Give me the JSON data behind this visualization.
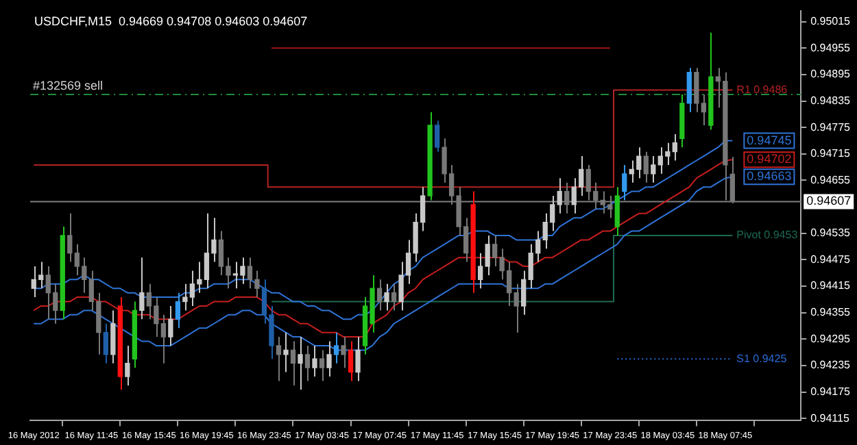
{
  "chart_data": {
    "type": "candlestick",
    "title": "USDCHF,M15  0.94669 0.94708 0.94603 0.94607",
    "categories": [
      "16 May 2012",
      null,
      null,
      null,
      null,
      null,
      null,
      null,
      "16 May 11:45",
      null,
      null,
      null,
      null,
      null,
      null,
      null,
      "16 May 15:45",
      null,
      null,
      null,
      null,
      null,
      null,
      null,
      "16 May 19:45",
      null,
      null,
      null,
      null,
      null,
      null,
      null,
      "16 May 23:45",
      null,
      null,
      null,
      null,
      null,
      null,
      null,
      "17 May 03:45",
      null,
      null,
      null,
      null,
      null,
      null,
      null,
      "17 May 07:45",
      null,
      null,
      null,
      null,
      null,
      null,
      null,
      "17 May 11:45",
      null,
      null,
      null,
      null,
      null,
      null,
      null,
      "17 May 15:45",
      null,
      null,
      null,
      null,
      null,
      null,
      null,
      "17 May 19:45",
      null,
      null,
      null,
      null,
      null,
      null,
      null,
      "17 May 23:45",
      null,
      null,
      null,
      null,
      null,
      null,
      null,
      "18 May 03:45",
      null,
      null,
      null,
      null,
      null,
      null,
      null,
      "18 May 07:45",
      null,
      null,
      null,
      null,
      null,
      null,
      null,
      null,
      null,
      null
    ],
    "ohlc": [
      [
        0.9441,
        0.9446,
        0.9439,
        0.9443
      ],
      [
        0.9443,
        0.9447,
        0.9441,
        0.9444
      ],
      [
        0.9444,
        0.9446,
        0.9434,
        0.944
      ],
      [
        0.944,
        0.9442,
        0.9433,
        0.9436
      ],
      [
        0.9436,
        0.9455,
        0.9434,
        0.9453
      ],
      [
        0.9453,
        0.9458,
        0.9447,
        0.9449
      ],
      [
        0.9449,
        0.9451,
        0.9444,
        0.9446
      ],
      [
        0.9446,
        0.9448,
        0.944,
        0.9443
      ],
      [
        0.9443,
        0.9445,
        0.9436,
        0.9438
      ],
      [
        0.9438,
        0.944,
        0.9426,
        0.9431
      ],
      [
        0.9431,
        0.9433,
        0.9424,
        0.9426
      ],
      [
        0.9426,
        0.9436,
        0.9424,
        0.9433
      ],
      [
        0.9437,
        0.9439,
        0.9418,
        0.9421
      ],
      [
        0.9421,
        0.9428,
        0.9419,
        0.9424
      ],
      [
        0.9425,
        0.9438,
        0.9423,
        0.9436
      ],
      [
        0.9436,
        0.9448,
        0.9434,
        0.944
      ],
      [
        0.944,
        0.9442,
        0.9434,
        0.9437
      ],
      [
        0.9437,
        0.9439,
        0.943,
        0.9433
      ],
      [
        0.9433,
        0.9435,
        0.9424,
        0.943
      ],
      [
        0.943,
        0.9437,
        0.9428,
        0.9434
      ],
      [
        0.9434,
        0.944,
        0.9432,
        0.9438
      ],
      [
        0.9438,
        0.9442,
        0.9436,
        0.9439
      ],
      [
        0.9439,
        0.9445,
        0.9437,
        0.9442
      ],
      [
        0.9442,
        0.9447,
        0.944,
        0.9443
      ],
      [
        0.9443,
        0.9458,
        0.9441,
        0.9449
      ],
      [
        0.9449,
        0.9457,
        0.9447,
        0.9452
      ],
      [
        0.9452,
        0.9454,
        0.9444,
        0.9446
      ],
      [
        0.9446,
        0.9448,
        0.9441,
        0.9444
      ],
      [
        0.9444,
        0.9447,
        0.9441,
        0.9444
      ],
      [
        0.9444,
        0.9448,
        0.9442,
        0.9446
      ],
      [
        0.9446,
        0.9448,
        0.9441,
        0.9443
      ],
      [
        0.9443,
        0.9445,
        0.9439,
        0.9441
      ],
      [
        0.9441,
        0.9443,
        0.9433,
        0.9435
      ],
      [
        0.9435,
        0.9437,
        0.9425,
        0.9428
      ],
      [
        0.9428,
        0.943,
        0.942,
        0.9426
      ],
      [
        0.9426,
        0.9431,
        0.9422,
        0.9427
      ],
      [
        0.9427,
        0.9429,
        0.9419,
        0.9424
      ],
      [
        0.9424,
        0.943,
        0.9418,
        0.9426
      ],
      [
        0.9426,
        0.9428,
        0.942,
        0.9423
      ],
      [
        0.9423,
        0.9428,
        0.9421,
        0.9425
      ],
      [
        0.9425,
        0.9427,
        0.942,
        0.9423
      ],
      [
        0.9423,
        0.9429,
        0.9421,
        0.9426
      ],
      [
        0.9426,
        0.9431,
        0.9424,
        0.9428
      ],
      [
        0.9428,
        0.943,
        0.9423,
        0.9426
      ],
      [
        0.9427,
        0.9429,
        0.942,
        0.9422
      ],
      [
        0.9422,
        0.943,
        0.942,
        0.9427
      ],
      [
        0.9428,
        0.9439,
        0.9426,
        0.9437
      ],
      [
        0.9433,
        0.9444,
        0.9431,
        0.9441
      ],
      [
        0.9441,
        0.9443,
        0.9436,
        0.9438
      ],
      [
        0.9438,
        0.9442,
        0.9436,
        0.944
      ],
      [
        0.944,
        0.9442,
        0.9436,
        0.9438
      ],
      [
        0.9438,
        0.9447,
        0.9436,
        0.9444
      ],
      [
        0.9444,
        0.9452,
        0.9442,
        0.9449
      ],
      [
        0.9449,
        0.9458,
        0.9447,
        0.9456
      ],
      [
        0.9456,
        0.9464,
        0.9454,
        0.9462
      ],
      [
        0.9462,
        0.9481,
        0.9461,
        0.9478
      ],
      [
        0.9478,
        0.9479,
        0.9472,
        0.9473
      ],
      [
        0.9473,
        0.9475,
        0.9465,
        0.9467
      ],
      [
        0.9467,
        0.9469,
        0.946,
        0.9462
      ],
      [
        0.9462,
        0.9464,
        0.9453,
        0.9455
      ],
      [
        0.9455,
        0.9457,
        0.9447,
        0.9449
      ],
      [
        0.946,
        0.9463,
        0.944,
        0.9443
      ],
      [
        0.9443,
        0.9449,
        0.9441,
        0.9446
      ],
      [
        0.9446,
        0.9453,
        0.9444,
        0.9451
      ],
      [
        0.9451,
        0.9453,
        0.9446,
        0.9448
      ],
      [
        0.9448,
        0.945,
        0.9443,
        0.9445
      ],
      [
        0.9445,
        0.9447,
        0.9437,
        0.944
      ],
      [
        0.944,
        0.9442,
        0.9431,
        0.9437
      ],
      [
        0.9437,
        0.9445,
        0.9435,
        0.9443
      ],
      [
        0.9443,
        0.9451,
        0.9441,
        0.9449
      ],
      [
        0.9449,
        0.9454,
        0.9447,
        0.9452
      ],
      [
        0.9452,
        0.9458,
        0.945,
        0.9456
      ],
      [
        0.9456,
        0.9462,
        0.9454,
        0.946
      ],
      [
        0.946,
        0.9466,
        0.9458,
        0.9463
      ],
      [
        0.9463,
        0.9465,
        0.9458,
        0.946
      ],
      [
        0.946,
        0.9466,
        0.9458,
        0.9464
      ],
      [
        0.9464,
        0.9471,
        0.9462,
        0.9468
      ],
      [
        0.9468,
        0.9469,
        0.9461,
        0.9463
      ],
      [
        0.9463,
        0.9465,
        0.9459,
        0.9461
      ],
      [
        0.9461,
        0.9463,
        0.9458,
        0.946
      ],
      [
        0.946,
        0.9462,
        0.9457,
        0.9459
      ],
      [
        0.9455,
        0.9464,
        0.9453,
        0.9462
      ],
      [
        0.9463,
        0.9469,
        0.9461,
        0.9467
      ],
      [
        0.9467,
        0.947,
        0.9465,
        0.9468
      ],
      [
        0.9468,
        0.9473,
        0.9466,
        0.9471
      ],
      [
        0.9471,
        0.9472,
        0.9465,
        0.9467
      ],
      [
        0.9467,
        0.9471,
        0.9465,
        0.9469
      ],
      [
        0.9469,
        0.9473,
        0.9467,
        0.9471
      ],
      [
        0.9471,
        0.9474,
        0.9469,
        0.9472
      ],
      [
        0.9472,
        0.9476,
        0.947,
        0.9474
      ],
      [
        0.9475,
        0.9485,
        0.9473,
        0.9483
      ],
      [
        0.9483,
        0.9491,
        0.9481,
        0.949
      ],
      [
        0.949,
        0.9491,
        0.9481,
        0.9483
      ],
      [
        0.9483,
        0.9485,
        0.9478,
        0.9481
      ],
      [
        0.9478,
        0.9499,
        0.9477,
        0.9489
      ],
      [
        0.9489,
        0.9491,
        0.9482,
        0.9488
      ],
      [
        0.9488,
        0.949,
        0.9461,
        0.9469
      ],
      [
        0.94669,
        0.94708,
        0.94603,
        0.94607
      ],
      null,
      null,
      null,
      null,
      null,
      null,
      null,
      null,
      null
    ],
    "colors": [
      "#c8c8c8",
      "#c8c8c8",
      "#787878",
      "#787878",
      "#22c41e",
      "#787878",
      "#787878",
      "#787878",
      "#787878",
      "#787878",
      "#1f5fa8",
      "#c8c8c8",
      "#ff1010",
      "#c8c8c8",
      "#22c41e",
      "#c8c8c8",
      "#787878",
      "#787878",
      "#787878",
      "#c8c8c8",
      "#3399ee",
      "#c8c8c8",
      "#c8c8c8",
      "#c8c8c8",
      "#c8c8c8",
      "#c8c8c8",
      "#787878",
      "#787878",
      "#c8c8c8",
      "#c8c8c8",
      "#787878",
      "#787878",
      "#1f5fa8",
      "#1f5fa8",
      "#787878",
      "#c8c8c8",
      "#787878",
      "#c8c8c8",
      "#787878",
      "#c8c8c8",
      "#787878",
      "#c8c8c8",
      "#3399ee",
      "#787878",
      "#ff1010",
      "#c8c8c8",
      "#22c41e",
      "#22c41e",
      "#787878",
      "#c8c8c8",
      "#787878",
      "#c8c8c8",
      "#c8c8c8",
      "#c8c8c8",
      "#c8c8c8",
      "#22c41e",
      "#1f5fa8",
      "#787878",
      "#787878",
      "#787878",
      "#787878",
      "#ff1010",
      "#c8c8c8",
      "#c8c8c8",
      "#787878",
      "#787878",
      "#787878",
      "#787878",
      "#c8c8c8",
      "#c8c8c8",
      "#c8c8c8",
      "#c8c8c8",
      "#c8c8c8",
      "#c8c8c8",
      "#787878",
      "#c8c8c8",
      "#c8c8c8",
      "#787878",
      "#787878",
      "#787878",
      "#787878",
      "#22c41e",
      "#3399ee",
      "#c8c8c8",
      "#c8c8c8",
      "#787878",
      "#c8c8c8",
      "#c8c8c8",
      "#c8c8c8",
      "#c8c8c8",
      "#22c41e",
      "#3399ee",
      "#787878",
      "#787878",
      "#22c41e",
      "#787878",
      "#787878",
      "#787878",
      null,
      null,
      null,
      null,
      null,
      null,
      null,
      null,
      null
    ],
    "series": [
      {
        "type": "line",
        "color": "#2f74d8",
        "values": [
          0.9441,
          0.9441,
          0.9442,
          0.9442,
          0.9442,
          0.9443,
          0.9443,
          0.9444,
          0.9443,
          0.9443,
          0.9442,
          0.9441,
          0.9441,
          0.944,
          0.944,
          0.9439,
          0.9439,
          0.9439,
          0.9439,
          0.9439,
          0.9439,
          0.944,
          0.944,
          0.9441,
          0.9441,
          0.9442,
          0.9442,
          0.9442,
          0.9443,
          0.9443,
          0.9443,
          0.9442,
          0.9441,
          0.944,
          0.944,
          0.9439,
          0.9438,
          0.9438,
          0.9437,
          0.9437,
          0.9436,
          0.9436,
          0.9435,
          0.9434,
          0.9434,
          0.9435,
          0.9435,
          0.9436,
          0.9438,
          0.944,
          0.9442,
          0.9443,
          0.9445,
          0.9446,
          0.9448,
          0.9449,
          0.945,
          0.9451,
          0.9452,
          0.9453,
          0.9453,
          0.9454,
          0.9454,
          0.9454,
          0.9453,
          0.9453,
          0.9453,
          0.9452,
          0.9452,
          0.9452,
          0.9452,
          0.9453,
          0.9453,
          0.9455,
          0.9456,
          0.9457,
          0.9457,
          0.9458,
          0.9459,
          0.9459,
          0.946,
          0.9461,
          0.9462,
          0.9463,
          0.9463,
          0.9464,
          0.9464,
          0.9465,
          0.9466,
          0.9467,
          0.9468,
          0.9469,
          0.947,
          0.9471,
          0.9472,
          0.9473,
          0.94745,
          0.94745,
          null,
          null,
          null,
          null,
          null,
          null,
          null,
          null,
          null
        ],
        "value_labels": [
          null,
          null,
          null,
          null,
          null,
          null,
          null,
          null,
          null,
          null,
          null,
          null,
          null,
          null,
          null,
          null,
          null,
          null,
          null,
          null,
          null,
          null,
          null,
          null,
          null,
          null,
          null,
          null,
          null,
          null,
          null,
          null,
          null,
          null,
          null,
          null,
          null,
          null,
          null,
          null,
          null,
          null,
          null,
          null,
          null,
          null,
          null,
          null,
          null,
          null,
          null,
          null,
          null,
          null,
          null,
          null,
          null,
          null,
          null,
          null,
          null,
          null,
          null,
          null,
          null,
          null,
          null,
          null,
          null,
          null,
          null,
          null,
          null,
          null,
          null,
          null,
          null,
          null,
          null,
          null,
          null,
          null,
          null,
          null,
          null,
          null,
          null,
          null,
          null,
          null,
          null,
          null,
          null,
          null,
          null,
          null,
          null,
          "0.94745",
          null,
          null,
          null,
          null,
          null,
          null,
          null,
          null,
          null
        ]
      },
      {
        "type": "line",
        "color": "#c81e1e",
        "values": [
          0.9436,
          0.9437,
          0.9437,
          0.9438,
          0.9438,
          0.9438,
          0.9439,
          0.9439,
          0.9439,
          0.9438,
          0.9438,
          0.9437,
          0.9436,
          0.9436,
          0.9435,
          0.9435,
          0.9435,
          0.9434,
          0.9434,
          0.9434,
          0.9434,
          0.9435,
          0.9436,
          0.9437,
          0.9437,
          0.9438,
          0.9438,
          0.9438,
          0.9439,
          0.9439,
          0.9439,
          0.9439,
          0.9438,
          0.9436,
          0.9435,
          0.9435,
          0.9434,
          0.9433,
          0.9433,
          0.9432,
          0.9431,
          0.9431,
          0.9431,
          0.943,
          0.943,
          0.943,
          0.943,
          0.9433,
          0.9434,
          0.9435,
          0.9437,
          0.9438,
          0.944,
          0.9441,
          0.9443,
          0.9444,
          0.9445,
          0.9446,
          0.9447,
          0.9448,
          0.9448,
          0.9448,
          0.9448,
          0.9448,
          0.9448,
          0.9448,
          0.9447,
          0.9447,
          0.9446,
          0.9446,
          0.9447,
          0.9448,
          0.9448,
          0.9449,
          0.945,
          0.9451,
          0.9452,
          0.9452,
          0.9453,
          0.9454,
          0.9454,
          0.9455,
          0.9456,
          0.9457,
          0.9458,
          0.9458,
          0.9459,
          0.946,
          0.9461,
          0.9462,
          0.9463,
          0.9464,
          0.9466,
          0.9467,
          0.9468,
          0.9469,
          0.947,
          0.94702,
          null,
          null,
          null,
          null,
          null,
          null,
          null,
          null,
          null
        ],
        "value_labels": [
          null,
          null,
          null,
          null,
          null,
          null,
          null,
          null,
          null,
          null,
          null,
          null,
          null,
          null,
          null,
          null,
          null,
          null,
          null,
          null,
          null,
          null,
          null,
          null,
          null,
          null,
          null,
          null,
          null,
          null,
          null,
          null,
          null,
          null,
          null,
          null,
          null,
          null,
          null,
          null,
          null,
          null,
          null,
          null,
          null,
          null,
          null,
          null,
          null,
          null,
          null,
          null,
          null,
          null,
          null,
          null,
          null,
          null,
          null,
          null,
          null,
          null,
          null,
          null,
          null,
          null,
          null,
          null,
          null,
          null,
          null,
          null,
          null,
          null,
          null,
          null,
          null,
          null,
          null,
          null,
          null,
          null,
          null,
          null,
          null,
          null,
          null,
          null,
          null,
          null,
          null,
          null,
          null,
          null,
          null,
          null,
          null,
          "0.94702",
          null,
          null,
          null,
          null,
          null,
          null,
          null,
          null,
          null
        ]
      },
      {
        "type": "line",
        "color": "#2f74d8",
        "values": [
          0.9433,
          0.9433,
          0.9434,
          0.9434,
          0.9434,
          0.9435,
          0.9435,
          0.9436,
          0.9436,
          0.9435,
          0.9434,
          0.9433,
          0.9432,
          0.9431,
          0.943,
          0.9429,
          0.9429,
          0.9428,
          0.9428,
          0.9428,
          0.9429,
          0.943,
          0.9431,
          0.9432,
          0.9432,
          0.9433,
          0.9434,
          0.9435,
          0.9435,
          0.9436,
          0.9436,
          0.9435,
          0.9435,
          0.9433,
          0.9432,
          0.9431,
          0.943,
          0.943,
          0.9429,
          0.9428,
          0.9428,
          0.9428,
          0.9427,
          0.9427,
          0.9427,
          0.9427,
          0.9427,
          0.9428,
          0.943,
          0.9431,
          0.9433,
          0.9434,
          0.9435,
          0.9436,
          0.9437,
          0.9438,
          0.9439,
          0.944,
          0.9441,
          0.9442,
          0.9442,
          0.9442,
          0.9442,
          0.9442,
          0.9442,
          0.9442,
          0.9441,
          0.9441,
          0.9441,
          0.9441,
          0.9441,
          0.9442,
          0.9442,
          0.9443,
          0.9444,
          0.9445,
          0.9446,
          0.9447,
          0.9448,
          0.9449,
          0.945,
          0.9451,
          0.9453,
          0.9454,
          0.9454,
          0.9455,
          0.9456,
          0.9457,
          0.9458,
          0.9459,
          0.946,
          0.9461,
          0.9463,
          0.9464,
          0.9464,
          0.9465,
          0.9466,
          0.94663,
          null,
          null,
          null,
          null,
          null,
          null,
          null,
          null,
          null
        ],
        "value_labels": [
          null,
          null,
          null,
          null,
          null,
          null,
          null,
          null,
          null,
          null,
          null,
          null,
          null,
          null,
          null,
          null,
          null,
          null,
          null,
          null,
          null,
          null,
          null,
          null,
          null,
          null,
          null,
          null,
          null,
          null,
          null,
          null,
          null,
          null,
          null,
          null,
          null,
          null,
          null,
          null,
          null,
          null,
          null,
          null,
          null,
          null,
          null,
          null,
          null,
          null,
          null,
          null,
          null,
          null,
          null,
          null,
          null,
          null,
          null,
          null,
          null,
          null,
          null,
          null,
          null,
          null,
          null,
          null,
          null,
          null,
          null,
          null,
          null,
          null,
          null,
          null,
          null,
          null,
          null,
          null,
          null,
          null,
          null,
          null,
          null,
          null,
          null,
          null,
          null,
          null,
          null,
          null,
          null,
          null,
          null,
          null,
          null,
          "0.94663",
          null,
          null,
          null,
          null,
          null,
          null,
          null,
          null,
          null
        ]
      },
      {
        "type": "step",
        "color": "#a01414",
        "values": [
          null,
          null,
          null,
          null,
          null,
          null,
          null,
          null,
          null,
          null,
          null,
          null,
          null,
          null,
          null,
          null,
          null,
          null,
          null,
          null,
          null,
          null,
          null,
          null,
          null,
          null,
          null,
          null,
          null,
          null,
          null,
          null,
          null,
          0.94955,
          0.94955,
          0.94955,
          0.94955,
          0.94955,
          0.94955,
          0.94955,
          0.94955,
          0.94955,
          0.94955,
          0.94955,
          0.94955,
          0.94955,
          0.94955,
          0.94955,
          0.94955,
          0.94955,
          0.94955,
          0.94955,
          0.94955,
          0.94955,
          0.94955,
          0.94955,
          0.94955,
          0.94955,
          0.94955,
          0.94955,
          0.94955,
          0.94955,
          0.94955,
          0.94955,
          0.94955,
          0.94955,
          0.94955,
          0.94955,
          0.94955,
          0.94955,
          0.94955,
          0.94955,
          0.94955,
          0.94955,
          0.94955,
          0.94955,
          0.94955,
          0.94955,
          0.94955,
          0.94955,
          0.94955,
          null,
          null,
          null,
          null,
          null,
          null,
          null,
          null,
          null,
          null,
          null,
          null,
          null,
          null,
          null,
          null,
          null,
          null,
          null,
          null,
          null,
          null,
          null,
          null,
          null,
          null
        ]
      },
      {
        "name": "R1 0.9486",
        "type": "step",
        "color": "#b42323",
        "values": [
          0.9469,
          0.9469,
          0.9469,
          0.9469,
          0.9469,
          0.9469,
          0.9469,
          0.9469,
          0.9469,
          0.9469,
          0.9469,
          0.9469,
          0.9469,
          0.9469,
          0.9469,
          0.9469,
          0.9469,
          0.9469,
          0.9469,
          0.9469,
          0.9469,
          0.9469,
          0.9469,
          0.9469,
          0.9469,
          0.9469,
          0.9469,
          0.9469,
          0.9469,
          0.9469,
          0.9469,
          0.9469,
          0.9469,
          0.9464,
          0.9464,
          0.9464,
          0.9464,
          0.9464,
          0.9464,
          0.9464,
          0.9464,
          0.9464,
          0.9464,
          0.9464,
          0.9464,
          0.9464,
          0.9464,
          0.9464,
          0.9464,
          0.9464,
          0.9464,
          0.9464,
          0.9464,
          0.9464,
          0.9464,
          0.9464,
          0.9464,
          0.9464,
          0.9464,
          0.9464,
          0.9464,
          0.9464,
          0.9464,
          0.9464,
          0.9464,
          0.9464,
          0.9464,
          0.9464,
          0.9464,
          0.9464,
          0.9464,
          0.9464,
          0.9464,
          0.9464,
          0.9464,
          0.9464,
          0.9464,
          0.9464,
          0.9464,
          0.9464,
          0.9464,
          0.9486,
          0.9486,
          0.9486,
          0.9486,
          0.9486,
          0.9486,
          0.9486,
          0.9486,
          0.9486,
          0.9486,
          0.9486,
          0.9486,
          0.9486,
          0.9486,
          0.9486,
          0.9486,
          0.9486,
          null,
          null,
          null,
          null,
          null,
          null,
          null,
          null,
          null
        ]
      },
      {
        "name": "Pivot 0.9453",
        "type": "step",
        "color": "#1e6a55",
        "values": [
          null,
          null,
          null,
          null,
          null,
          null,
          null,
          null,
          null,
          null,
          null,
          null,
          null,
          null,
          null,
          null,
          null,
          null,
          null,
          null,
          null,
          null,
          null,
          null,
          null,
          null,
          null,
          null,
          null,
          null,
          null,
          null,
          null,
          0.9438,
          0.9438,
          0.9438,
          0.9438,
          0.9438,
          0.9438,
          0.9438,
          0.9438,
          0.9438,
          0.9438,
          0.9438,
          0.9438,
          0.9438,
          0.9438,
          0.9438,
          0.9438,
          0.9438,
          0.9438,
          0.9438,
          0.9438,
          0.9438,
          0.9438,
          0.9438,
          0.9438,
          0.9438,
          0.9438,
          0.9438,
          0.9438,
          0.9438,
          0.9438,
          0.9438,
          0.9438,
          0.9438,
          0.9438,
          0.9438,
          0.9438,
          0.9438,
          0.9438,
          0.9438,
          0.9438,
          0.9438,
          0.9438,
          0.9438,
          0.9438,
          0.9438,
          0.9438,
          0.9438,
          0.9438,
          0.9453,
          0.9453,
          0.9453,
          0.9453,
          0.9453,
          0.9453,
          0.9453,
          0.9453,
          0.9453,
          0.9453,
          0.9453,
          0.9453,
          0.9453,
          0.9453,
          0.9453,
          0.9453,
          0.9453,
          null,
          null,
          null,
          null,
          null,
          null,
          null,
          null,
          null
        ]
      },
      {
        "name": "S1 0.9425",
        "type": "step",
        "color": "#2a6ad7",
        "line_style": "dotted",
        "values": [
          null,
          null,
          null,
          null,
          null,
          null,
          null,
          null,
          null,
          null,
          null,
          null,
          null,
          null,
          null,
          null,
          null,
          null,
          null,
          null,
          null,
          null,
          null,
          null,
          null,
          null,
          null,
          null,
          null,
          null,
          null,
          null,
          null,
          null,
          null,
          null,
          null,
          null,
          null,
          null,
          null,
          null,
          null,
          null,
          null,
          null,
          null,
          null,
          null,
          null,
          null,
          null,
          null,
          null,
          null,
          null,
          null,
          null,
          null,
          null,
          null,
          null,
          null,
          null,
          null,
          null,
          null,
          null,
          null,
          null,
          null,
          null,
          null,
          null,
          null,
          null,
          null,
          null,
          null,
          null,
          null,
          0.9425,
          0.9425,
          0.9425,
          0.9425,
          0.9425,
          0.9425,
          0.9425,
          0.9425,
          0.9425,
          0.9425,
          0.9425,
          0.9425,
          0.9425,
          0.9425,
          0.9425,
          0.9425,
          0.9425,
          null,
          null,
          null,
          null,
          null,
          null,
          null,
          null,
          null
        ]
      }
    ],
    "ref_lines": [
      {
        "axis": "y",
        "value": 0.9485,
        "label": "#132569 sell",
        "color": "#1e8c3c",
        "line_style": "dashed"
      },
      {
        "axis": "y",
        "value": 0.94607,
        "label": "0.94607",
        "color": "#808080",
        "line_style": "solid"
      }
    ],
    "ylim": [
      0.9411,
      0.9504
    ],
    "yticks": [
      0.95015,
      0.94955,
      0.94895,
      0.94835,
      0.94775,
      0.94715,
      0.94655,
      0.94535,
      0.94475,
      0.94415,
      0.94355,
      0.94295,
      0.94235,
      0.94175,
      0.94115
    ],
    "grid": false,
    "legend": false
  }
}
